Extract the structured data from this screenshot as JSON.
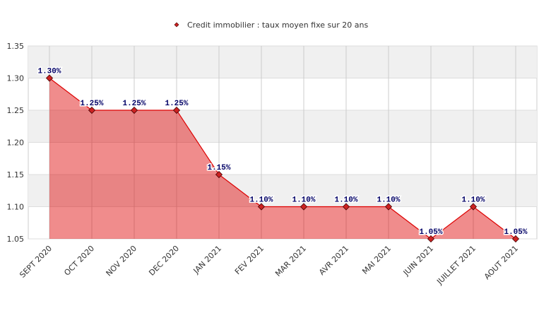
{
  "chart_data": {
    "type": "area",
    "categories": [
      "SEPT 2020",
      "OCT 2020",
      "NOV 2020",
      "DEC 2020",
      "JAN 2021",
      "FEV 2021",
      "MAR 2021",
      "AVR 2021",
      "MAI 2021",
      "JUIN 2021",
      "JUILLET 2021",
      "AOUT 2021"
    ],
    "series": [
      {
        "name": "Credit immobilier : taux moyen fixe sur 20 ans",
        "color": "#dd0000",
        "values": [
          1.3,
          1.25,
          1.25,
          1.25,
          1.15,
          1.1,
          1.1,
          1.1,
          1.1,
          1.05,
          1.1,
          1.05
        ],
        "value_labels": [
          "1.30%",
          "1.25%",
          "1.25%",
          "1.25%",
          "1.15%",
          "1.10%",
          "1.10%",
          "1.10%",
          "1.10%",
          "1.05%",
          "1.10%",
          "1.05%"
        ]
      }
    ],
    "ylim": [
      1.05,
      1.35
    ],
    "yticks": [
      1.05,
      {
        "value": 1.1,
        "label": "1.10"
      },
      1.15,
      {
        "value": 1.2,
        "label": "1.20"
      },
      1.25,
      {
        "value": 1.3,
        "label": "1.30"
      },
      1.35
    ],
    "grid": true
  }
}
